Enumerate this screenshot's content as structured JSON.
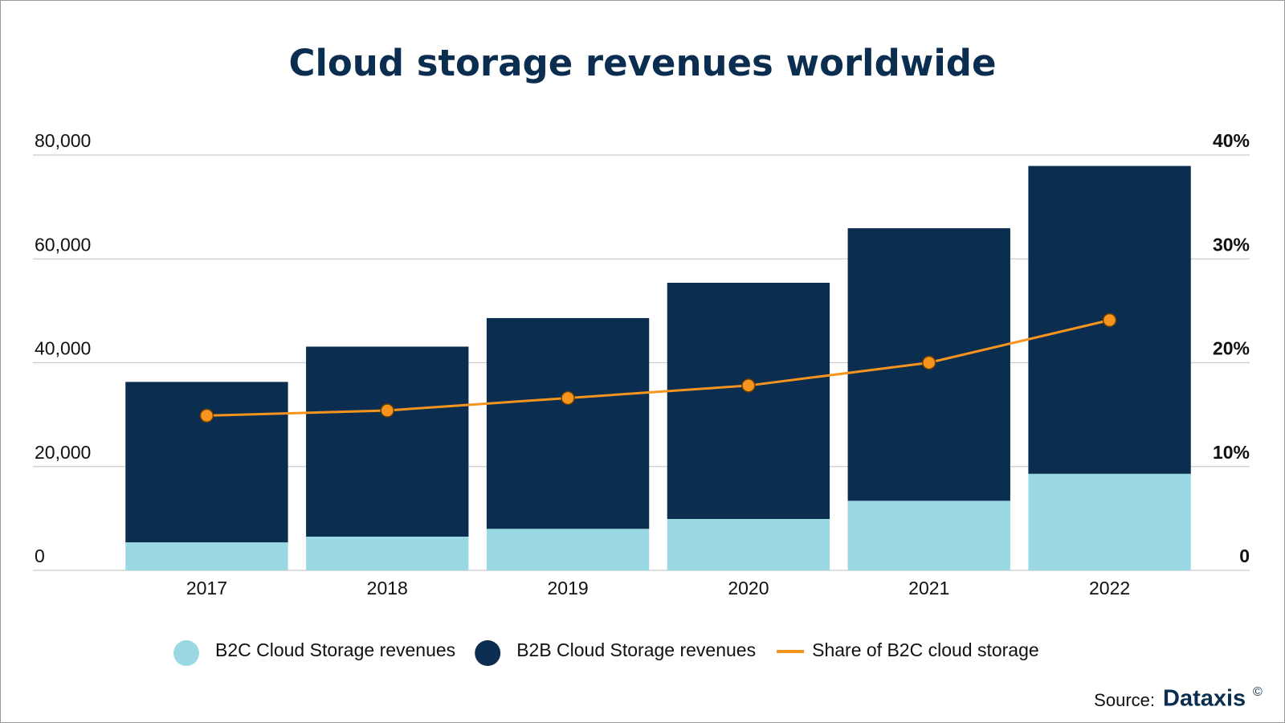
{
  "chart_data": {
    "type": "bar",
    "title": "Cloud storage revenues worldwide",
    "categories": [
      "2017",
      "2018",
      "2019",
      "2020",
      "2021",
      "2022"
    ],
    "stacked": true,
    "series": [
      {
        "name": "B2C Cloud Storage revenues",
        "color": "#9ad8e3",
        "values": [
          5400,
          6500,
          8000,
          9900,
          13400,
          18600
        ]
      },
      {
        "name": "B2B Cloud Storage revenues",
        "color": "#0b2e50",
        "values": [
          30900,
          36600,
          40600,
          45500,
          52500,
          59300
        ]
      },
      {
        "name": "Share of B2C cloud storage",
        "type": "line",
        "axis": "y2",
        "color": "#f7941d",
        "values": [
          14.9,
          15.4,
          16.6,
          17.8,
          20.0,
          24.1
        ]
      }
    ],
    "ylim": [
      0,
      80000
    ],
    "yticks": [
      0,
      {
        "value": 20000,
        "label": "20,000"
      },
      {
        "value": 40000,
        "label": "40,000"
      },
      {
        "value": 60000,
        "label": "60,000"
      },
      {
        "value": 80000,
        "label": "80,000"
      }
    ],
    "y2lim": [
      0,
      40
    ],
    "y2ticks": [
      0,
      {
        "value": 10,
        "label": "10%"
      },
      {
        "value": 20,
        "label": "20%"
      },
      {
        "value": 30,
        "label": "30%"
      },
      {
        "value": 40,
        "label": "40%"
      }
    ],
    "grid": true,
    "legend": "bottom",
    "source_label": "Source:",
    "source": "Dataxis",
    "source_mark": "©"
  }
}
